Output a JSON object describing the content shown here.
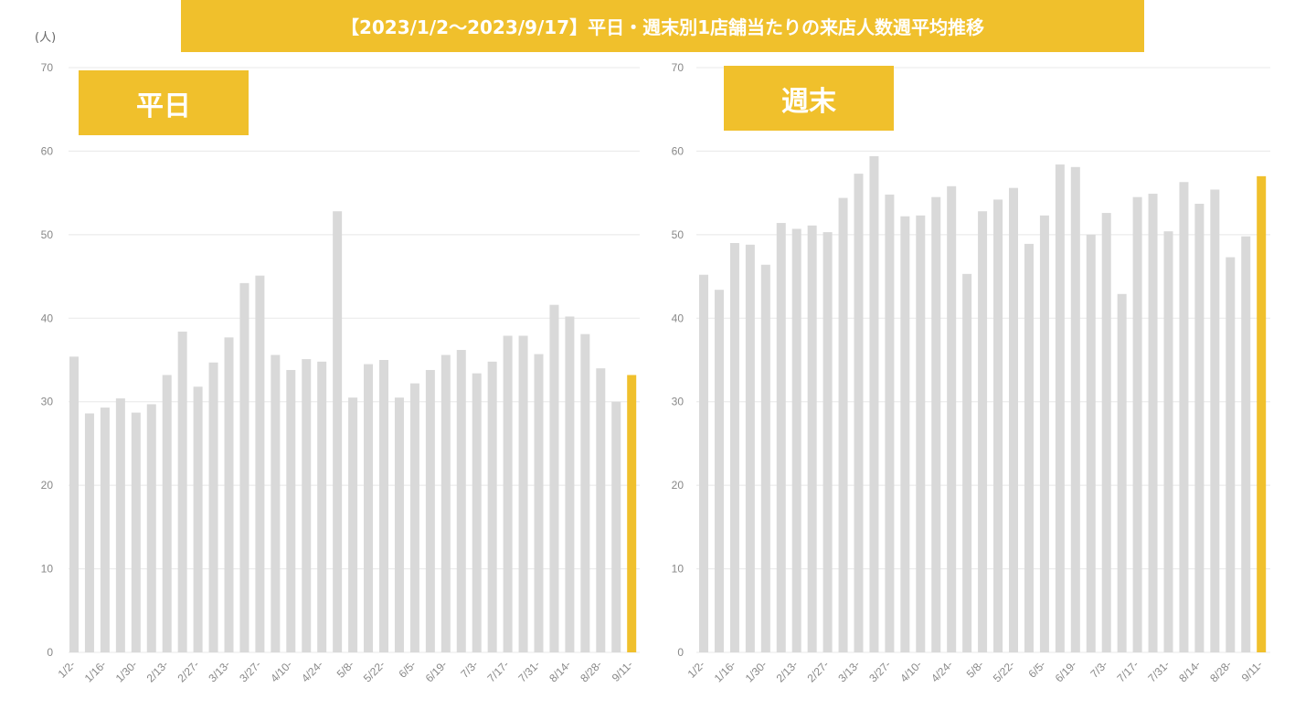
{
  "title": "【2023/1/2〜2023/9/17】平日・週末別1店舗当たりの来店人数週平均推移",
  "unit_label": "(人)",
  "colors": {
    "bar": "#d9d9d9",
    "highlight": "#f0c02c",
    "grid": "#e8e8e8"
  },
  "chart_data": [
    {
      "type": "bar",
      "panel_label": "平日",
      "ylim": [
        0,
        70
      ],
      "yticks": [
        0,
        10,
        20,
        30,
        40,
        50,
        60,
        70
      ],
      "grid": true,
      "tick_labels": [
        "1/2-",
        "1/16-",
        "1/30-",
        "2/13-",
        "2/27-",
        "3/13-",
        "3/27-",
        "4/10-",
        "4/24-",
        "5/8-",
        "5/22-",
        "6/5-",
        "6/19-",
        "7/3-",
        "7/17-",
        "7/31-",
        "8/14-",
        "8/28-",
        "9/11-"
      ],
      "values": [
        35.4,
        28.6,
        29.3,
        30.4,
        28.7,
        29.7,
        33.2,
        38.4,
        31.8,
        34.7,
        37.7,
        44.2,
        45.1,
        35.6,
        33.8,
        35.1,
        34.8,
        52.8,
        30.5,
        34.5,
        35.0,
        30.5,
        32.2,
        33.8,
        35.6,
        36.2,
        33.4,
        34.8,
        37.9,
        37.9,
        35.7,
        41.6,
        40.2,
        38.1,
        34.0,
        30.0,
        33.2
      ],
      "highlight_index": 36
    },
    {
      "type": "bar",
      "panel_label": "週末",
      "ylim": [
        0,
        70
      ],
      "yticks": [
        0,
        10,
        20,
        30,
        40,
        50,
        60,
        70
      ],
      "grid": true,
      "tick_labels": [
        "1/2-",
        "1/16-",
        "1/30-",
        "2/13-",
        "2/27-",
        "3/13-",
        "3/27-",
        "4/10-",
        "4/24-",
        "5/8-",
        "5/22-",
        "6/5-",
        "6/19-",
        "7/3-",
        "7/17-",
        "7/31-",
        "8/14-",
        "8/28-",
        "9/11-"
      ],
      "values": [
        45.2,
        43.4,
        49.0,
        48.8,
        46.4,
        51.4,
        50.7,
        51.1,
        50.3,
        54.4,
        57.3,
        59.4,
        54.8,
        52.2,
        52.3,
        54.5,
        55.8,
        45.3,
        52.8,
        54.2,
        55.6,
        48.9,
        52.3,
        58.4,
        58.1,
        50.0,
        52.6,
        42.9,
        54.5,
        54.9,
        50.4,
        56.3,
        53.7,
        55.4,
        47.3,
        49.8,
        57.0
      ],
      "highlight_index": 36
    }
  ]
}
